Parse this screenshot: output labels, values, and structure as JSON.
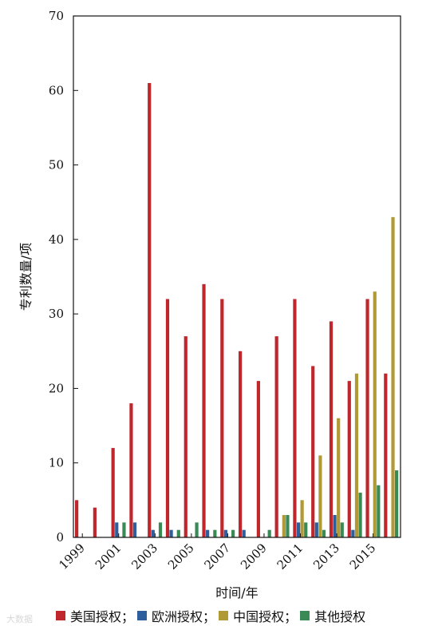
{
  "chart_data": {
    "type": "bar",
    "xlabel": "时间/年",
    "ylabel": "专利数量/项",
    "ylim": [
      0,
      70
    ],
    "yticks": [
      0,
      10,
      20,
      30,
      40,
      50,
      60,
      70
    ],
    "categories": [
      "1999",
      "2000",
      "2001",
      "2002",
      "2003",
      "2004",
      "2005",
      "2006",
      "2007",
      "2008",
      "2009",
      "2010",
      "2011",
      "2012",
      "2013",
      "2014",
      "2015",
      "2016"
    ],
    "xtick_labels": [
      {
        "index": 0,
        "label": "1999"
      },
      {
        "index": 2,
        "label": "2001"
      },
      {
        "index": 4,
        "label": "2003"
      },
      {
        "index": 6,
        "label": "2005"
      },
      {
        "index": 8,
        "label": "2007"
      },
      {
        "index": 10,
        "label": "2009"
      },
      {
        "index": 12,
        "label": "2011"
      },
      {
        "index": 14,
        "label": "2013"
      },
      {
        "index": 16,
        "label": "2015"
      }
    ],
    "series": [
      {
        "name": "美国授权",
        "color": "#c0272d",
        "values": [
          5,
          4,
          12,
          18,
          61,
          32,
          27,
          34,
          32,
          25,
          21,
          27,
          32,
          23,
          29,
          21,
          32,
          22
        ]
      },
      {
        "name": "欧洲授权",
        "color": "#2e5f9c",
        "values": [
          0,
          0,
          2,
          2,
          1,
          1,
          0,
          1,
          1,
          1,
          0,
          0,
          2,
          2,
          3,
          1,
          0,
          0
        ]
      },
      {
        "name": "中国授权",
        "color": "#b09a35",
        "values": [
          0,
          0,
          0,
          0,
          0,
          0,
          0,
          0,
          0,
          0,
          0,
          3,
          5,
          11,
          16,
          22,
          33,
          43
        ]
      },
      {
        "name": "其他授权",
        "color": "#3a8a55",
        "values": [
          0,
          0,
          2,
          0,
          2,
          1,
          2,
          1,
          1,
          0,
          1,
          3,
          2,
          1,
          2,
          6,
          7,
          9
        ]
      }
    ],
    "legend_position": "bottom",
    "legend_separator": "；"
  },
  "watermark": "大数据"
}
